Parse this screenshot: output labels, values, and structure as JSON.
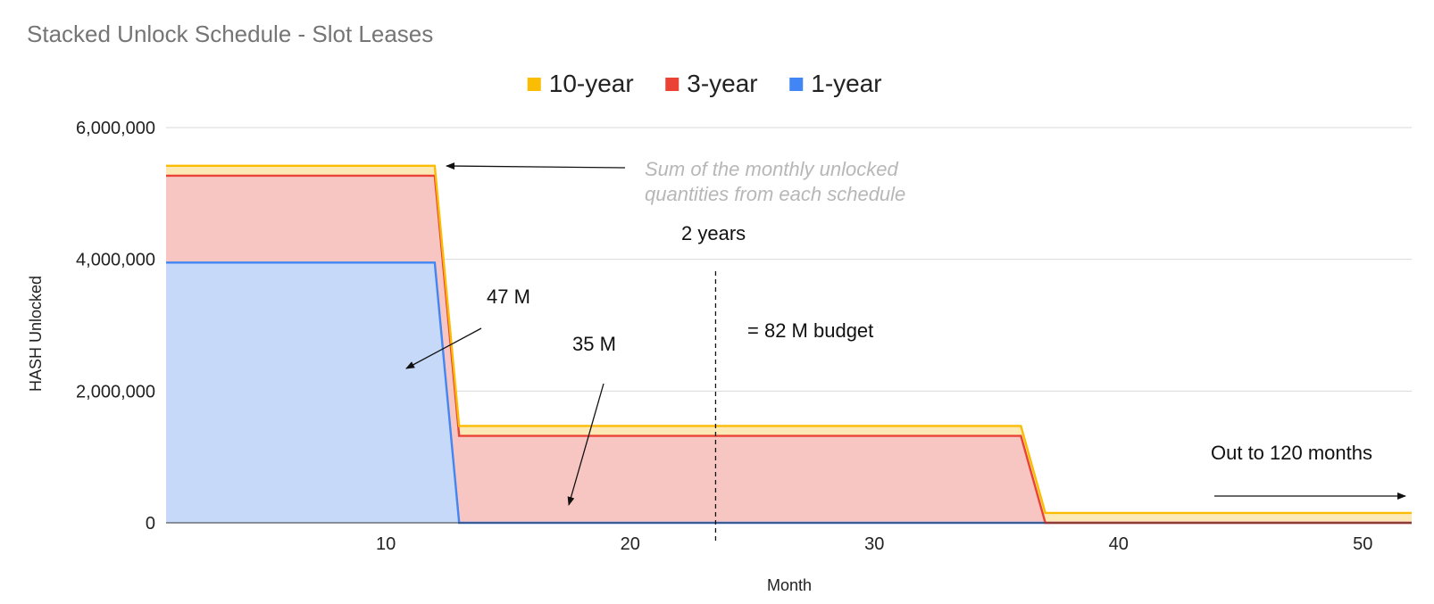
{
  "chart_data": {
    "type": "area",
    "stacked": true,
    "title": "Stacked Unlock Schedule - Slot Leases",
    "xlabel": "Month",
    "ylabel": "HASH Unlocked",
    "xlim": [
      1,
      52
    ],
    "ylim": [
      0,
      6000000
    ],
    "x_ticks": [
      10,
      20,
      30,
      40,
      50
    ],
    "y_ticks": [
      {
        "value": 0,
        "label": "0"
      },
      {
        "value": 2000000,
        "label": "2,000,000"
      },
      {
        "value": 4000000,
        "label": "4,000,000"
      },
      {
        "value": 6000000,
        "label": "6,000,000"
      }
    ],
    "grid": true,
    "legend_position": "top",
    "legend": [
      "10-year",
      "3-year",
      "1-year"
    ],
    "series": [
      {
        "name": "1-year",
        "color": "#4285f4",
        "fill": "#c6d9f8",
        "points": [
          [
            1,
            3950000
          ],
          [
            12,
            3950000
          ],
          [
            13,
            0
          ],
          [
            52,
            0
          ]
        ]
      },
      {
        "name": "3-year",
        "color": "#ea4335",
        "fill": "#f8c6c2",
        "points": [
          [
            1,
            1320000
          ],
          [
            12,
            1320000
          ],
          [
            13,
            1320000
          ],
          [
            36,
            1320000
          ],
          [
            37,
            0
          ],
          [
            52,
            0
          ]
        ]
      },
      {
        "name": "10-year",
        "color": "#fbbc04",
        "fill": "#fde9b6",
        "points": [
          [
            1,
            150000
          ],
          [
            12,
            150000
          ],
          [
            13,
            150000
          ],
          [
            36,
            150000
          ],
          [
            37,
            150000
          ],
          [
            52,
            150000
          ]
        ]
      }
    ],
    "vertical_marker": {
      "x": 23.5,
      "label": "2 years"
    },
    "annotations": {
      "sum_note_line1": "Sum of the monthly unlocked",
      "sum_note_line2": "quantities from each schedule",
      "label_47m": "47 M",
      "label_35m": "35 M",
      "budget": "= 82 M budget",
      "out_to": "Out to 120 months"
    }
  }
}
